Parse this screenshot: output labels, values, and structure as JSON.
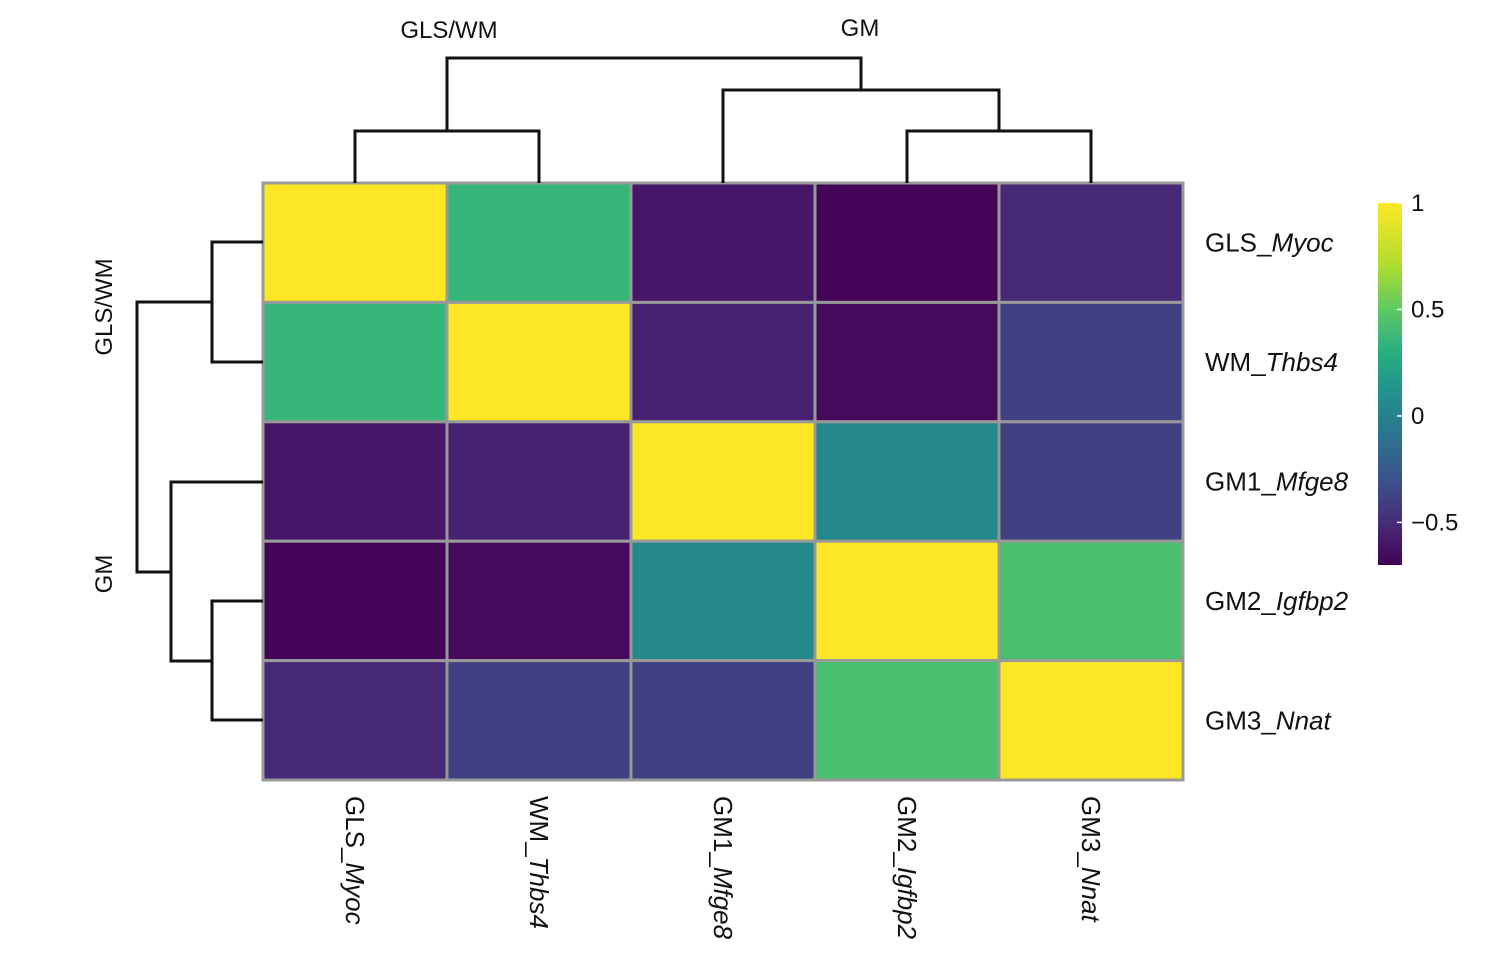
{
  "chart_data": {
    "type": "heatmap",
    "title": "",
    "rows": [
      {
        "prefix": "GLS_",
        "gene": "Myoc"
      },
      {
        "prefix": "WM_",
        "gene": "Thbs4"
      },
      {
        "prefix": "GM1_",
        "gene": "Mfge8"
      },
      {
        "prefix": "GM2_",
        "gene": "Igfbp2"
      },
      {
        "prefix": "GM3_",
        "gene": "Nnat"
      }
    ],
    "columns": [
      {
        "prefix": "GLS_",
        "gene": "Myoc"
      },
      {
        "prefix": "WM_",
        "gene": "Thbs4"
      },
      {
        "prefix": "GM1_",
        "gene": "Mfge8"
      },
      {
        "prefix": "GM2_",
        "gene": "Igfbp2"
      },
      {
        "prefix": "GM3_",
        "gene": "Nnat"
      }
    ],
    "values": [
      [
        1.0,
        0.35,
        -0.6,
        -0.68,
        -0.52
      ],
      [
        0.35,
        1.0,
        -0.55,
        -0.66,
        -0.4
      ],
      [
        -0.6,
        -0.55,
        1.0,
        0.05,
        -0.4
      ],
      [
        -0.68,
        -0.66,
        0.05,
        1.0,
        0.42
      ],
      [
        -0.52,
        -0.4,
        -0.4,
        0.42,
        1.0
      ]
    ],
    "color_scale": {
      "min": -0.7,
      "max": 1.0,
      "stops": [
        {
          "value": -0.7,
          "color": "#440154"
        },
        {
          "value": -0.5,
          "color": "#472d7b"
        },
        {
          "value": -0.3,
          "color": "#3b528b"
        },
        {
          "value": -0.1,
          "color": "#2c728e"
        },
        {
          "value": 0.1,
          "color": "#21918c"
        },
        {
          "value": 0.3,
          "color": "#28ae80"
        },
        {
          "value": 0.5,
          "color": "#5ec962"
        },
        {
          "value": 0.7,
          "color": "#addc30"
        },
        {
          "value": 1.0,
          "color": "#fde725"
        }
      ],
      "ticks": [
        {
          "value": 1,
          "label": "1"
        },
        {
          "value": 0.5,
          "label": "0.5"
        },
        {
          "value": 0,
          "label": "0"
        },
        {
          "value": -0.5,
          "label": "−0.5"
        }
      ]
    },
    "dendrogram": {
      "top_clusters": [
        "GLS/WM",
        "GM"
      ],
      "left_clusters": [
        "GLS/WM",
        "GM"
      ]
    },
    "grid_color": "#999999",
    "legend_position": "right"
  }
}
